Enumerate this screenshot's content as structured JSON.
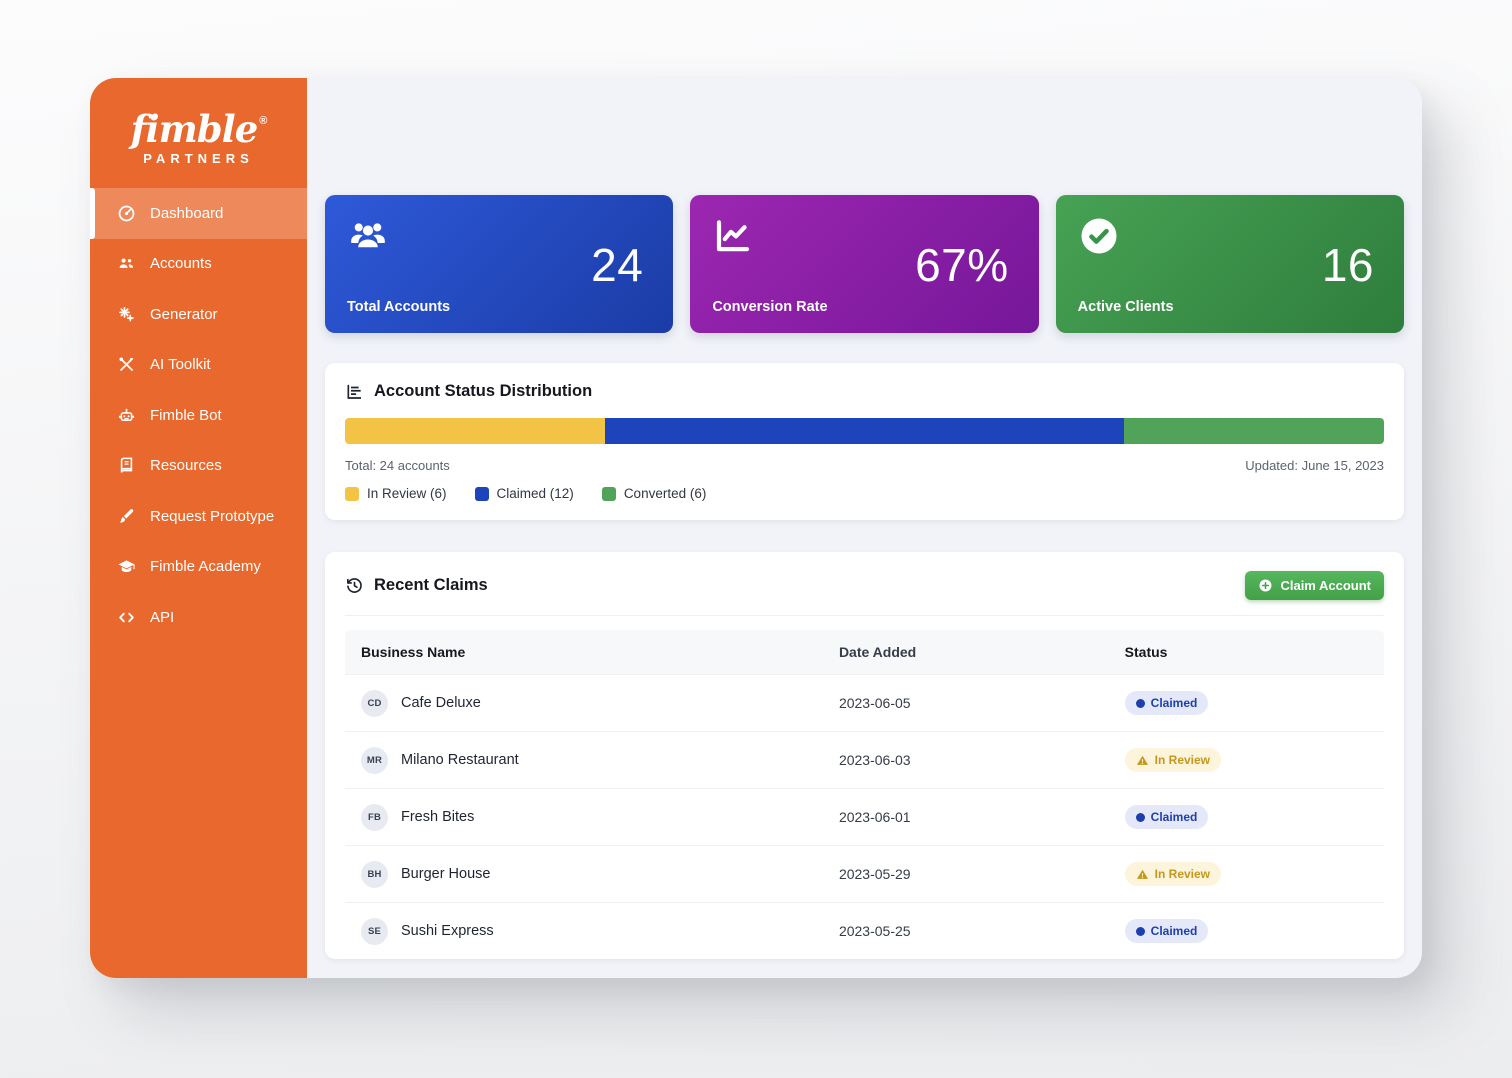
{
  "brand": {
    "name": "fimble",
    "registered": "®",
    "subtitle": "PARTNERS"
  },
  "sidebar": {
    "items": [
      {
        "label": "Dashboard",
        "icon": "dashboard",
        "active": true
      },
      {
        "label": "Accounts",
        "icon": "accounts",
        "active": false
      },
      {
        "label": "Generator",
        "icon": "generator",
        "active": false
      },
      {
        "label": "AI Toolkit",
        "icon": "ai-toolkit",
        "active": false
      },
      {
        "label": "Fimble Bot",
        "icon": "fimble-bot",
        "active": false
      },
      {
        "label": "Resources",
        "icon": "resources",
        "active": false
      },
      {
        "label": "Request Prototype",
        "icon": "request-prototype",
        "active": false
      },
      {
        "label": "Fimble Academy",
        "icon": "fimble-academy",
        "active": false
      },
      {
        "label": "API",
        "icon": "api",
        "active": false
      }
    ]
  },
  "stats": [
    {
      "label": "Total Accounts",
      "value": "24",
      "icon": "users-group",
      "gradient": [
        "#2E59D9",
        "#1B3CA6"
      ]
    },
    {
      "label": "Conversion Rate",
      "value": "67%",
      "icon": "chart-line",
      "gradient": [
        "#9C27B0",
        "#76179A"
      ]
    },
    {
      "label": "Active Clients",
      "value": "16",
      "icon": "check-circle",
      "gradient": [
        "#47A254",
        "#2E7D3C"
      ]
    }
  ],
  "distribution": {
    "title": "Account Status Distribution",
    "total": 24,
    "total_label": "Total: 24 accounts",
    "updated_label": "Updated: June 15, 2023",
    "segments": [
      {
        "label": "In Review",
        "count": 6,
        "color": "#F2C344",
        "legend_label": "In Review (6)"
      },
      {
        "label": "Claimed",
        "count": 12,
        "color": "#1E44BB",
        "legend_label": "Claimed (12)"
      },
      {
        "label": "Converted",
        "count": 6,
        "color": "#52A35A",
        "legend_label": "Converted (6)"
      }
    ]
  },
  "claims": {
    "title": "Recent Claims",
    "button_label": "Claim Account",
    "columns": [
      "Business Name",
      "Date Added",
      "Status"
    ],
    "rows": [
      {
        "initials": "CD",
        "name": "Cafe Deluxe",
        "date": "2023-06-05",
        "status": "Claimed"
      },
      {
        "initials": "MR",
        "name": "Milano Restaurant",
        "date": "2023-06-03",
        "status": "In Review"
      },
      {
        "initials": "FB",
        "name": "Fresh Bites",
        "date": "2023-06-01",
        "status": "Claimed"
      },
      {
        "initials": "BH",
        "name": "Burger House",
        "date": "2023-05-29",
        "status": "In Review"
      },
      {
        "initials": "SE",
        "name": "Sushi Express",
        "date": "2023-05-25",
        "status": "Claimed"
      }
    ],
    "status_styles": {
      "Claimed": {
        "bg": "#E4E8F8",
        "fg": "#1D3FAE"
      },
      "In Review": {
        "bg": "#FCF5DB",
        "fg": "#C7961C"
      }
    }
  },
  "colors": {
    "sidebar_orange": "#E8682D",
    "button_green": "#4CAF50"
  },
  "chart_data": {
    "type": "bar",
    "layout": "horizontal-stacked",
    "title": "Account Status Distribution",
    "categories": [
      "In Review",
      "Claimed",
      "Converted"
    ],
    "values": [
      6,
      12,
      6
    ],
    "total": 24,
    "colors": [
      "#F2C344",
      "#1E44BB",
      "#52A35A"
    ],
    "legend": [
      "In Review (6)",
      "Claimed (12)",
      "Converted (6)"
    ],
    "annotations": [
      "Total: 24 accounts",
      "Updated: June 15, 2023"
    ],
    "legend_position": "bottom-left"
  }
}
